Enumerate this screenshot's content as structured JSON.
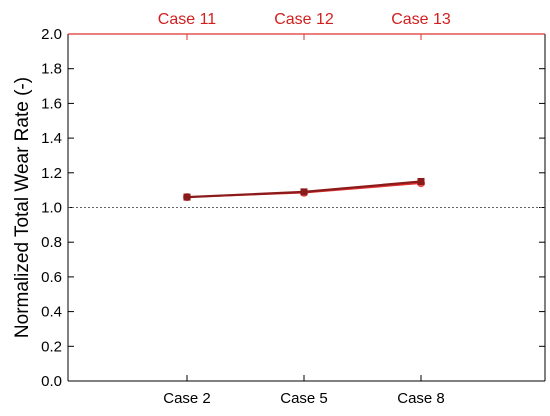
{
  "chart_data": {
    "type": "line",
    "categories": [
      "Case 2",
      "Case 5",
      "Case 8"
    ],
    "top_categories": [
      "Case 11",
      "Case 12",
      "Case 13"
    ],
    "series": [
      {
        "values": [
          1.06,
          1.09,
          1.15
        ],
        "color": "#8b1a1a",
        "marker": "square"
      },
      {
        "values": [
          1.06,
          1.085,
          1.14
        ],
        "color": "#e03030",
        "marker": "circle"
      }
    ],
    "reference_line": {
      "y": 1.0,
      "style": "dotted"
    },
    "xlabel": "",
    "ylabel": "Normalized Total Wear Rate (-)",
    "ylim": [
      0.0,
      2.0
    ],
    "yticks": [
      "0.0",
      "0.2",
      "0.4",
      "0.6",
      "0.8",
      "1.0",
      "1.2",
      "1.4",
      "1.6",
      "1.8",
      "2.0"
    ],
    "grid": false,
    "axis_color": "#000000",
    "top_axis_color": "#e03030",
    "top_label_color": "#d11f1f"
  }
}
